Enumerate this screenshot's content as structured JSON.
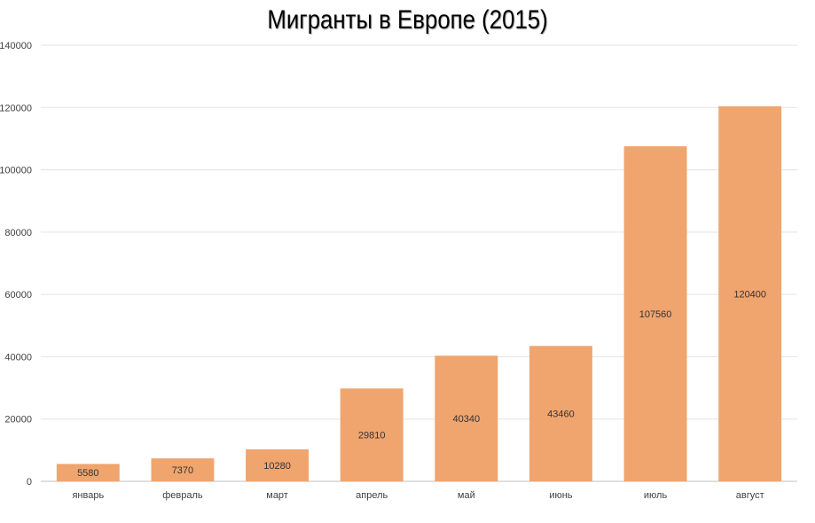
{
  "chart_data": {
    "type": "bar",
    "title": "Мигранты в Европе (2015)",
    "xlabel": "",
    "ylabel": "",
    "categories": [
      "январь",
      "февраль",
      "март",
      "апрель",
      "май",
      "июнь",
      "июль",
      "август"
    ],
    "values": [
      5580,
      7370,
      10280,
      29810,
      40340,
      43460,
      107560,
      120400
    ],
    "data_labels": [
      "5580",
      "7370",
      "10280",
      "29810",
      "40340",
      "43460",
      "107560",
      "120400"
    ],
    "ylim": [
      0,
      140000
    ],
    "yticks": [
      0,
      20000,
      40000,
      60000,
      80000,
      100000,
      120000,
      140000
    ],
    "ytick_labels": [
      "0",
      "20000",
      "40000",
      "60000",
      "80000",
      "100000",
      "120000",
      "140000"
    ],
    "grid": true,
    "legend": "none",
    "colors": {
      "bar": "#f0a46e",
      "grid": "#e3e3e3",
      "axis": "#bfbfbf",
      "text": "#404040"
    }
  }
}
